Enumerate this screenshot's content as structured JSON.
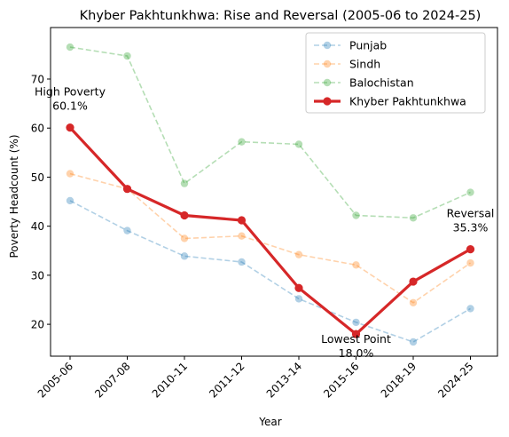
{
  "chart_data": {
    "type": "line",
    "title": "Khyber Pakhtunkhwa: Rise and Reversal (2005-06 to 2024-25)",
    "xlabel": "Year",
    "ylabel": "Poverty Headcount (%)",
    "categories": [
      "2005-06",
      "2007-08",
      "2010-11",
      "2011-12",
      "2013-14",
      "2015-16",
      "2018-19",
      "2024-25"
    ],
    "yticks": [
      20,
      30,
      40,
      50,
      60,
      70
    ],
    "ylim": [
      13.5,
      80.5
    ],
    "grid": false,
    "legend_position": "top-right",
    "series": [
      {
        "name": "Punjab",
        "color": "#1f77b4",
        "style": "dashed-faded",
        "values": [
          45.2,
          39.1,
          33.9,
          32.7,
          25.2,
          20.4,
          16.4,
          23.2
        ]
      },
      {
        "name": "Sindh",
        "color": "#ff7f0e",
        "style": "dashed-faded",
        "values": [
          50.7,
          47.6,
          37.5,
          38.0,
          34.2,
          32.1,
          24.4,
          32.5
        ]
      },
      {
        "name": "Balochistan",
        "color": "#2ca02c",
        "style": "dashed-faded",
        "values": [
          76.5,
          74.7,
          48.7,
          57.2,
          56.7,
          42.2,
          41.7,
          46.9
        ]
      },
      {
        "name": "Khyber Pakhtunkhwa",
        "color": "#d62728",
        "style": "solid-bold",
        "values": [
          60.1,
          47.6,
          42.2,
          41.2,
          27.4,
          18.0,
          28.7,
          35.3
        ]
      }
    ],
    "annotations": [
      {
        "line1": "High Poverty",
        "line2": "60.1%",
        "category": "2005-06",
        "value": 60.1
      },
      {
        "line1": "Lowest Point",
        "line2": "18.0%",
        "category": "2015-16",
        "value": 18.0
      },
      {
        "line1": "Reversal",
        "line2": "35.3%",
        "category": "2024-25",
        "value": 35.3
      }
    ]
  }
}
